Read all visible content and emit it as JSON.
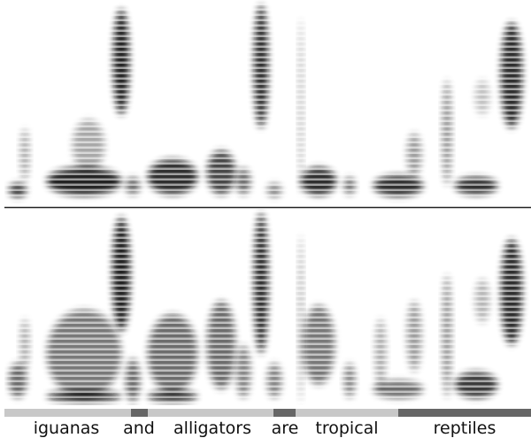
{
  "words": [
    "iguanas",
    "and",
    "alligators",
    "are",
    "tropical",
    "reptiles"
  ]
}
